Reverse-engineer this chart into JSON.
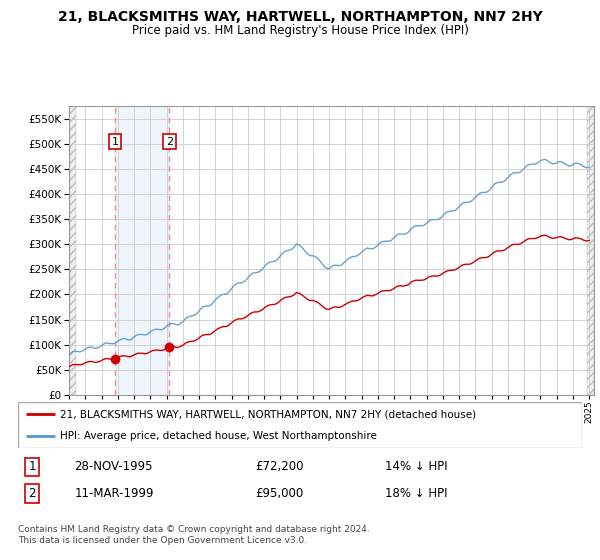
{
  "title": "21, BLACKSMITHS WAY, HARTWELL, NORTHAMPTON, NN7 2HY",
  "subtitle": "Price paid vs. HM Land Registry's House Price Index (HPI)",
  "legend_line1": "21, BLACKSMITHS WAY, HARTWELL, NORTHAMPTON, NN7 2HY (detached house)",
  "legend_line2": "HPI: Average price, detached house, West Northamptonshire",
  "sale1_date": "28-NOV-1995",
  "sale1_price": 72200,
  "sale1_note": "14% ↓ HPI",
  "sale2_date": "11-MAR-1999",
  "sale2_price": 95000,
  "sale2_note": "18% ↓ HPI",
  "footer": "Contains HM Land Registry data © Crown copyright and database right 2024.\nThis data is licensed under the Open Government Licence v3.0.",
  "hpi_color": "#5599cc",
  "sale_color": "#cc0000",
  "grid_color": "#cccccc",
  "ylim": [
    0,
    575000
  ],
  "yticks": [
    0,
    50000,
    100000,
    150000,
    200000,
    250000,
    300000,
    350000,
    400000,
    450000,
    500000,
    550000
  ],
  "x_start_year": 1993,
  "x_end_year": 2025
}
